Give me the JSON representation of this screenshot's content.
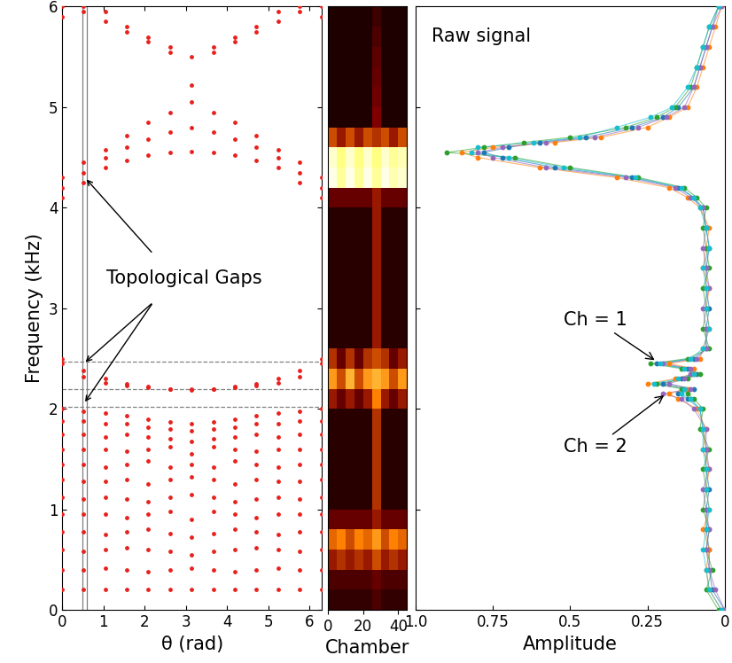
{
  "chart_data": [
    {
      "type": "scatter",
      "xlabel": "θ (rad)",
      "ylabel": "Frequency (kHz)",
      "x": [
        0.0,
        0.52,
        1.05,
        1.57,
        2.09,
        2.62,
        3.14,
        3.67,
        4.19,
        4.71,
        5.24,
        5.76,
        6.28
      ],
      "series": [
        {
          "color": "#e8201c",
          "marker": "o",
          "values": [
            0.2,
            0.2,
            0.2,
            0.2,
            0.2,
            0.2,
            0.2,
            0.2,
            0.2,
            0.2,
            0.2,
            0.2,
            0.2
          ]
        },
        {
          "color": "#e8201c",
          "marker": "o",
          "values": [
            0.4,
            0.4,
            0.42,
            0.4,
            0.38,
            0.4,
            0.42,
            0.4,
            0.38,
            0.4,
            0.42,
            0.4,
            0.4
          ]
        },
        {
          "color": "#e8201c",
          "marker": "o",
          "values": [
            0.6,
            0.58,
            0.6,
            0.62,
            0.6,
            0.58,
            0.55,
            0.58,
            0.6,
            0.62,
            0.6,
            0.58,
            0.6
          ]
        },
        {
          "color": "#e8201c",
          "marker": "o",
          "values": [
            0.78,
            0.78,
            0.75,
            0.78,
            0.8,
            0.76,
            0.72,
            0.76,
            0.8,
            0.78,
            0.75,
            0.78,
            0.78
          ]
        },
        {
          "color": "#e8201c",
          "marker": "o",
          "values": [
            0.95,
            0.95,
            0.95,
            0.92,
            0.95,
            0.98,
            0.9,
            0.98,
            0.95,
            0.92,
            0.95,
            0.95,
            0.95
          ]
        },
        {
          "color": "#e8201c",
          "marker": "o",
          "values": [
            1.12,
            1.1,
            1.12,
            1.1,
            1.08,
            1.12,
            1.15,
            1.12,
            1.08,
            1.1,
            1.12,
            1.1,
            1.12
          ]
        },
        {
          "color": "#e8201c",
          "marker": "o",
          "values": [
            1.3,
            1.28,
            1.28,
            1.3,
            1.25,
            1.3,
            1.32,
            1.3,
            1.25,
            1.3,
            1.28,
            1.28,
            1.3
          ]
        },
        {
          "color": "#e8201c",
          "marker": "o",
          "values": [
            1.45,
            1.45,
            1.42,
            1.45,
            1.48,
            1.42,
            1.45,
            1.42,
            1.48,
            1.45,
            1.42,
            1.45,
            1.45
          ]
        },
        {
          "color": "#e8201c",
          "marker": "o",
          "values": [
            1.6,
            1.6,
            1.6,
            1.58,
            1.6,
            1.62,
            1.55,
            1.62,
            1.6,
            1.58,
            1.6,
            1.6,
            1.6
          ]
        },
        {
          "color": "#e8201c",
          "marker": "o",
          "values": [
            1.75,
            1.75,
            1.72,
            1.75,
            1.72,
            1.7,
            1.68,
            1.7,
            1.72,
            1.75,
            1.72,
            1.75,
            1.75
          ]
        },
        {
          "color": "#e8201c",
          "marker": "o",
          "values": [
            1.88,
            1.88,
            1.85,
            1.85,
            1.82,
            1.8,
            1.78,
            1.8,
            1.82,
            1.85,
            1.85,
            1.88,
            1.88
          ]
        },
        {
          "color": "#e8201c",
          "marker": "o",
          "values": [
            2.0,
            1.98,
            1.96,
            1.93,
            1.9,
            1.87,
            1.85,
            1.87,
            1.9,
            1.93,
            1.96,
            1.98,
            2.0
          ]
        },
        {
          "color": "#e8201c",
          "marker": "o",
          "values": [
            2.5,
            2.38,
            2.3,
            2.25,
            2.22,
            2.2,
            2.2,
            2.2,
            2.22,
            2.25,
            2.3,
            2.38,
            2.5
          ]
        },
        {
          "color": "#e8201c",
          "marker": "o",
          "values": [
            2.45,
            2.32,
            2.26,
            2.23,
            2.21,
            2.2,
            2.19,
            2.2,
            2.21,
            2.23,
            2.26,
            2.32,
            2.45
          ]
        },
        {
          "color": "#e8201c",
          "marker": "o",
          "values": [
            4.1,
            4.25,
            4.4,
            4.47,
            4.52,
            4.55,
            4.56,
            4.55,
            4.52,
            4.47,
            4.4,
            4.25,
            4.1
          ]
        },
        {
          "color": "#e8201c",
          "marker": "o",
          "values": [
            4.2,
            4.35,
            4.5,
            4.6,
            4.68,
            4.75,
            4.8,
            4.75,
            4.68,
            4.6,
            4.5,
            4.35,
            4.2
          ]
        },
        {
          "color": "#e8201c",
          "marker": "o",
          "values": [
            4.3,
            4.45,
            4.58,
            4.72,
            4.85,
            4.95,
            5.05,
            4.95,
            4.85,
            4.72,
            4.58,
            4.45,
            4.3
          ]
        },
        {
          "color": "#e8201c",
          "marker": "o",
          "values": [
            6.0,
            5.95,
            5.85,
            5.75,
            5.65,
            5.55,
            5.5,
            5.55,
            5.65,
            5.75,
            5.85,
            5.95,
            6.0
          ]
        },
        {
          "color": "#e8201c",
          "marker": "o",
          "values": [
            5.9,
            6.0,
            5.95,
            5.8,
            5.7,
            5.6,
            5.22,
            5.6,
            5.7,
            5.8,
            5.95,
            6.0,
            5.9
          ]
        }
      ],
      "xlim": [
        0,
        6.3
      ],
      "ylim": [
        0,
        6
      ],
      "xticks": [
        0,
        1,
        2,
        3,
        4,
        5,
        6
      ],
      "yticks": [
        0,
        1,
        2,
        3,
        4,
        5,
        6
      ],
      "hlines": [
        2.47,
        2.2,
        2.02
      ],
      "vlines": [
        0.5,
        0.6
      ],
      "annotations": [
        {
          "text": "Topological Gaps",
          "arrows": [
            [
              0.55,
              4.3
            ],
            [
              0.52,
              2.45
            ],
            [
              0.52,
              2.05
            ]
          ]
        }
      ]
    },
    {
      "type": "heatmap",
      "xlabel": "Chamber",
      "x_edges": [
        0,
        5,
        10,
        15,
        20,
        25,
        30,
        35,
        40,
        45
      ],
      "y_edges": [
        0.0,
        0.2,
        0.4,
        0.6,
        0.8,
        1.0,
        1.2,
        1.4,
        1.6,
        1.8,
        2.0,
        2.2,
        2.4,
        2.6,
        2.8,
        3.0,
        3.2,
        3.4,
        3.6,
        3.8,
        4.0,
        4.2,
        4.4,
        4.6,
        4.8,
        5.0,
        5.2,
        5.4,
        5.6,
        5.8,
        6.0
      ],
      "cells": [
        [
          0.1,
          0.1,
          0.1,
          0.1,
          0.1,
          0.15,
          0.1,
          0.1,
          0.1
        ],
        [
          0.15,
          0.15,
          0.15,
          0.15,
          0.15,
          0.2,
          0.15,
          0.15,
          0.15
        ],
        [
          0.3,
          0.35,
          0.3,
          0.35,
          0.3,
          0.4,
          0.3,
          0.35,
          0.3
        ],
        [
          0.45,
          0.5,
          0.4,
          0.5,
          0.45,
          0.55,
          0.4,
          0.5,
          0.45
        ],
        [
          0.2,
          0.2,
          0.2,
          0.2,
          0.2,
          0.3,
          0.2,
          0.2,
          0.2
        ],
        [
          0.08,
          0.08,
          0.08,
          0.08,
          0.08,
          0.35,
          0.08,
          0.08,
          0.08
        ],
        [
          0.08,
          0.08,
          0.08,
          0.08,
          0.08,
          0.35,
          0.08,
          0.08,
          0.08
        ],
        [
          0.08,
          0.08,
          0.08,
          0.08,
          0.08,
          0.35,
          0.08,
          0.08,
          0.08
        ],
        [
          0.08,
          0.08,
          0.08,
          0.08,
          0.08,
          0.35,
          0.08,
          0.08,
          0.08
        ],
        [
          0.08,
          0.08,
          0.08,
          0.08,
          0.08,
          0.35,
          0.08,
          0.08,
          0.08
        ],
        [
          0.3,
          0.2,
          0.3,
          0.2,
          0.3,
          0.5,
          0.3,
          0.2,
          0.3
        ],
        [
          0.55,
          0.4,
          0.6,
          0.4,
          0.55,
          0.6,
          0.55,
          0.4,
          0.55
        ],
        [
          0.35,
          0.2,
          0.35,
          0.2,
          0.35,
          0.4,
          0.35,
          0.2,
          0.3
        ],
        [
          0.08,
          0.08,
          0.08,
          0.08,
          0.08,
          0.3,
          0.08,
          0.08,
          0.08
        ],
        [
          0.08,
          0.08,
          0.08,
          0.08,
          0.08,
          0.3,
          0.08,
          0.08,
          0.08
        ],
        [
          0.08,
          0.08,
          0.08,
          0.08,
          0.08,
          0.3,
          0.08,
          0.08,
          0.08
        ],
        [
          0.08,
          0.08,
          0.08,
          0.08,
          0.08,
          0.3,
          0.08,
          0.08,
          0.08
        ],
        [
          0.08,
          0.08,
          0.08,
          0.08,
          0.08,
          0.3,
          0.08,
          0.08,
          0.08
        ],
        [
          0.08,
          0.08,
          0.08,
          0.08,
          0.08,
          0.3,
          0.08,
          0.08,
          0.08
        ],
        [
          0.08,
          0.08,
          0.08,
          0.08,
          0.08,
          0.3,
          0.08,
          0.08,
          0.08
        ],
        [
          0.2,
          0.2,
          0.2,
          0.2,
          0.2,
          0.3,
          0.2,
          0.2,
          0.2
        ],
        [
          0.95,
          0.8,
          0.95,
          0.8,
          0.95,
          0.8,
          0.95,
          0.85,
          0.9
        ],
        [
          0.9,
          0.75,
          0.9,
          0.75,
          0.9,
          0.75,
          0.9,
          0.8,
          0.85
        ],
        [
          0.4,
          0.3,
          0.4,
          0.3,
          0.4,
          0.35,
          0.4,
          0.3,
          0.4
        ],
        [
          0.06,
          0.06,
          0.06,
          0.06,
          0.06,
          0.25,
          0.06,
          0.06,
          0.06
        ],
        [
          0.06,
          0.06,
          0.06,
          0.06,
          0.06,
          0.22,
          0.06,
          0.06,
          0.06
        ],
        [
          0.06,
          0.06,
          0.06,
          0.06,
          0.06,
          0.2,
          0.06,
          0.06,
          0.06
        ],
        [
          0.06,
          0.06,
          0.06,
          0.06,
          0.06,
          0.18,
          0.06,
          0.06,
          0.06
        ],
        [
          0.06,
          0.06,
          0.06,
          0.06,
          0.06,
          0.15,
          0.06,
          0.06,
          0.06
        ],
        [
          0.06,
          0.06,
          0.06,
          0.06,
          0.06,
          0.12,
          0.06,
          0.06,
          0.06
        ]
      ],
      "crange": [
        0,
        1
      ],
      "xlim": [
        0,
        45
      ],
      "ylim": [
        0,
        6
      ],
      "xticks": [
        0,
        20,
        40
      ],
      "tick_labels": "x"
    },
    {
      "type": "scatter",
      "xlabel": "Amplitude",
      "y": [
        0.0,
        0.2,
        0.4,
        0.6,
        0.8,
        1.0,
        1.2,
        1.4,
        1.6,
        1.8,
        2.0,
        2.1,
        2.15,
        2.2,
        2.25,
        2.3,
        2.35,
        2.4,
        2.45,
        2.5,
        2.6,
        2.8,
        3.0,
        3.2,
        3.4,
        3.6,
        3.8,
        4.0,
        4.1,
        4.2,
        4.3,
        4.4,
        4.5,
        4.55,
        4.6,
        4.65,
        4.7,
        4.8,
        4.9,
        5.0,
        5.2,
        5.4,
        5.6,
        5.8,
        6.0
      ],
      "series": [
        {
          "color": "#1f77b4",
          "marker": "o",
          "values": [
            0.0,
            0.04,
            0.05,
            0.05,
            0.06,
            0.06,
            0.05,
            0.06,
            0.06,
            0.07,
            0.08,
            0.12,
            0.15,
            0.1,
            0.2,
            0.14,
            0.09,
            0.12,
            0.22,
            0.1,
            0.06,
            0.06,
            0.05,
            0.06,
            0.06,
            0.05,
            0.06,
            0.07,
            0.1,
            0.15,
            0.3,
            0.55,
            0.72,
            0.78,
            0.7,
            0.6,
            0.45,
            0.3,
            0.2,
            0.15,
            0.1,
            0.08,
            0.06,
            0.04,
            0.02
          ]
        },
        {
          "color": "#ff7f0e",
          "marker": "o",
          "values": [
            0.01,
            0.05,
            0.06,
            0.05,
            0.07,
            0.05,
            0.06,
            0.05,
            0.07,
            0.06,
            0.09,
            0.15,
            0.18,
            0.12,
            0.25,
            0.16,
            0.1,
            0.1,
            0.18,
            0.08,
            0.07,
            0.05,
            0.06,
            0.05,
            0.07,
            0.06,
            0.05,
            0.08,
            0.12,
            0.18,
            0.35,
            0.6,
            0.8,
            0.85,
            0.75,
            0.55,
            0.4,
            0.25,
            0.18,
            0.12,
            0.09,
            0.07,
            0.05,
            0.03,
            0.01
          ]
        },
        {
          "color": "#2ca02c",
          "marker": "o",
          "values": [
            0.02,
            0.06,
            0.04,
            0.06,
            0.05,
            0.07,
            0.06,
            0.07,
            0.05,
            0.08,
            0.07,
            0.1,
            0.12,
            0.14,
            0.22,
            0.12,
            0.08,
            0.14,
            0.24,
            0.12,
            0.05,
            0.07,
            0.06,
            0.07,
            0.05,
            0.06,
            0.07,
            0.06,
            0.09,
            0.13,
            0.28,
            0.5,
            0.68,
            0.9,
            0.78,
            0.65,
            0.5,
            0.32,
            0.22,
            0.16,
            0.11,
            0.09,
            0.07,
            0.05,
            0.02
          ]
        },
        {
          "color": "#9467bd",
          "marker": "o",
          "values": [
            0.0,
            0.03,
            0.05,
            0.06,
            0.05,
            0.06,
            0.07,
            0.05,
            0.06,
            0.06,
            0.1,
            0.14,
            0.2,
            0.11,
            0.18,
            0.13,
            0.11,
            0.11,
            0.2,
            0.09,
            0.06,
            0.06,
            0.07,
            0.05,
            0.06,
            0.07,
            0.06,
            0.07,
            0.11,
            0.16,
            0.32,
            0.58,
            0.75,
            0.8,
            0.72,
            0.58,
            0.42,
            0.28,
            0.19,
            0.13,
            0.1,
            0.08,
            0.06,
            0.04,
            0.01
          ]
        },
        {
          "color": "#17becf",
          "marker": "o",
          "values": [
            0.01,
            0.05,
            0.06,
            0.07,
            0.06,
            0.05,
            0.06,
            0.06,
            0.07,
            0.07,
            0.08,
            0.11,
            0.14,
            0.13,
            0.23,
            0.15,
            0.1,
            0.13,
            0.21,
            0.11,
            0.07,
            0.05,
            0.06,
            0.06,
            0.07,
            0.05,
            0.06,
            0.08,
            0.1,
            0.14,
            0.29,
            0.52,
            0.7,
            0.82,
            0.8,
            0.62,
            0.47,
            0.35,
            0.24,
            0.17,
            0.12,
            0.09,
            0.07,
            0.05,
            0.02
          ]
        }
      ],
      "xlim": [
        1.0,
        0
      ],
      "ylim": [
        0,
        6
      ],
      "xticks": [
        {
          "value": 1.0,
          "label": "1.0"
        },
        0.75,
        0.5,
        0.25,
        0
      ],
      "yticks": [
        0,
        1,
        2,
        3,
        4,
        5,
        6
      ],
      "tick_labels": "x",
      "annotations": [
        {
          "text": "Raw signal",
          "arrows": []
        },
        {
          "text": "Ch = 1",
          "arrows": [
            [
              0.22,
              2.47
            ]
          ]
        },
        {
          "text": "Ch = 2",
          "arrows": [
            [
              0.19,
              2.15
            ]
          ]
        }
      ]
    }
  ]
}
